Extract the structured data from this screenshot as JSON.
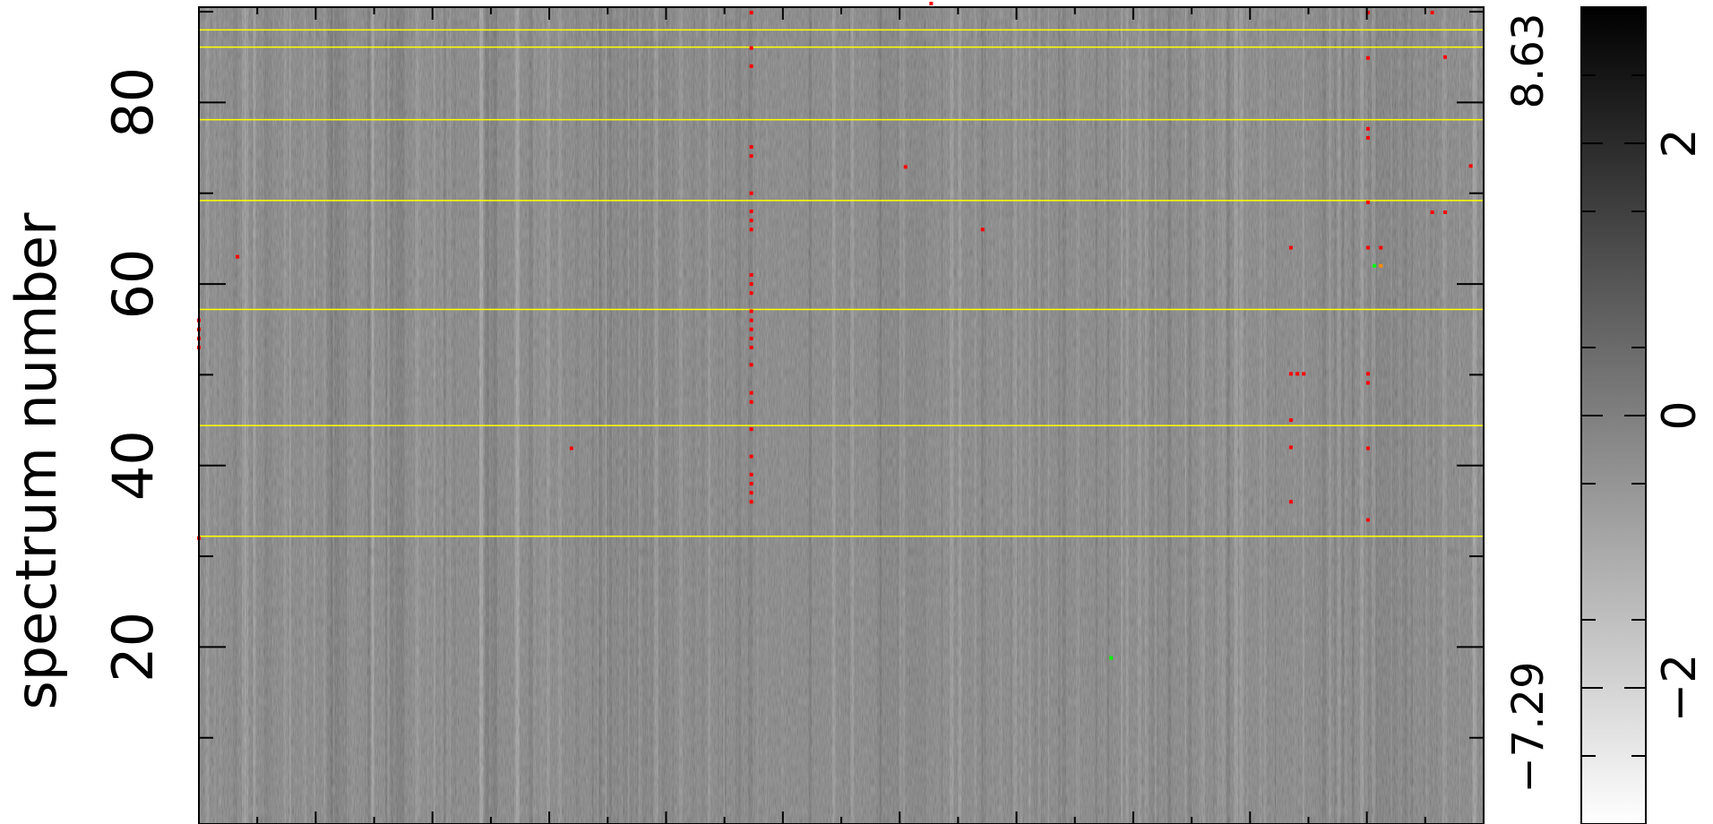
{
  "chart_data": {
    "type": "heatmap",
    "title": "",
    "xlabel": "",
    "ylabel": "spectrum number",
    "ylim": [
      1,
      90
    ],
    "y_ticks": [
      20,
      40,
      60,
      80
    ],
    "y_tick_labels": [
      "20",
      "40",
      "60",
      "80"
    ],
    "data_range_labels": {
      "max": "8.63",
      "min": "−7.29"
    },
    "colorbar": {
      "range": [
        -3,
        3
      ],
      "ticks": [
        -2,
        0,
        2
      ],
      "tick_labels": [
        "−2",
        "0",
        "2"
      ],
      "colormap": "grayscale (white = low, black = high)"
    },
    "grid": false,
    "separator_rows": [
      32.2,
      44.4,
      57.2,
      69.2,
      78.1,
      86.1,
      88.0
    ],
    "columns": 1150,
    "flagged_pixels": {
      "red": [
        [
          0.43,
          89.9
        ],
        [
          0.43,
          86.0
        ],
        [
          0.43,
          84.0
        ],
        [
          0.43,
          75.1
        ],
        [
          0.43,
          74.1
        ],
        [
          0.43,
          70.0
        ],
        [
          0.43,
          68.0
        ],
        [
          0.43,
          67.0
        ],
        [
          0.43,
          66.0
        ],
        [
          0.43,
          61.0
        ],
        [
          0.43,
          60.0
        ],
        [
          0.43,
          59.0
        ],
        [
          0.43,
          57.0
        ],
        [
          0.43,
          56.0
        ],
        [
          0.43,
          55.0
        ],
        [
          0.43,
          54.0
        ],
        [
          0.43,
          53.0
        ],
        [
          0.43,
          51.1
        ],
        [
          0.43,
          48.0
        ],
        [
          0.43,
          47.0
        ],
        [
          0.43,
          44.0
        ],
        [
          0.43,
          41.0
        ],
        [
          0.43,
          39.0
        ],
        [
          0.43,
          38.0
        ],
        [
          0.43,
          37.0
        ],
        [
          0.43,
          36.0
        ],
        [
          0.03,
          63.0
        ],
        [
          0.29,
          41.9
        ],
        [
          0.57,
          90.9
        ],
        [
          0.55,
          72.9
        ],
        [
          0.61,
          66.0
        ],
        [
          0.85,
          64.0
        ],
        [
          0.85,
          50.1
        ],
        [
          0.855,
          50.1
        ],
        [
          0.86,
          50.1
        ],
        [
          0.85,
          45.0
        ],
        [
          0.85,
          42.0
        ],
        [
          0.85,
          36.0
        ],
        [
          0.91,
          89.9
        ],
        [
          0.91,
          84.9
        ],
        [
          0.91,
          77.1
        ],
        [
          0.91,
          76.1
        ],
        [
          0.91,
          69.0
        ],
        [
          0.91,
          64.0
        ],
        [
          0.92,
          64.0
        ],
        [
          0.91,
          50.1
        ],
        [
          0.91,
          49.1
        ],
        [
          0.91,
          41.9
        ],
        [
          0.91,
          34.0
        ],
        [
          0.96,
          89.9
        ],
        [
          0.96,
          67.9
        ],
        [
          0.97,
          67.9
        ],
        [
          0.97,
          85.0
        ],
        [
          0.99,
          73.0
        ],
        [
          0.0,
          56.0
        ],
        [
          0.0,
          55.0
        ],
        [
          0.0,
          54.0
        ],
        [
          0.0,
          53.0
        ],
        [
          0.0,
          32.0
        ]
      ],
      "green": [
        [
          0.71,
          18.8
        ],
        [
          0.915,
          62.0
        ]
      ],
      "orange": [
        [
          0.92,
          62.0
        ]
      ]
    }
  }
}
